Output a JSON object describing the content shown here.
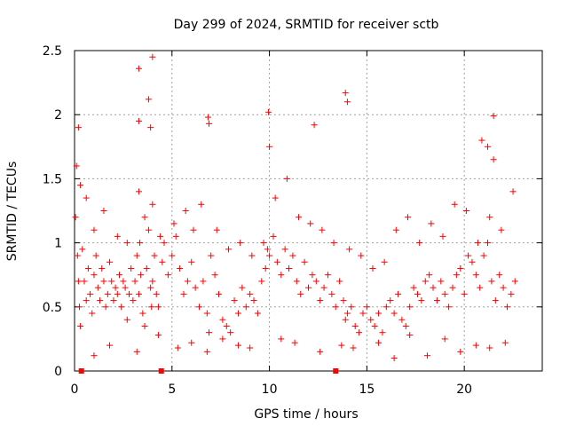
{
  "chart_data": {
    "type": "scatter",
    "title": "Day 299 of 2024, SRMTID for receiver sctb",
    "xlabel": "GPS time / hours",
    "ylabel": "SRMTID / TECUs",
    "xlim": [
      0,
      24
    ],
    "ylim": [
      0,
      2.5
    ],
    "xticks": [
      0,
      5,
      10,
      15,
      20
    ],
    "yticks": [
      0,
      0.5,
      1,
      1.5,
      2,
      2.5
    ],
    "xtick_labels": [
      "0",
      "5",
      "10",
      "15",
      "20"
    ],
    "ytick_labels": [
      "0",
      "0.5",
      "1",
      "1.5",
      "2",
      "2.5"
    ],
    "grid": true,
    "marker": "plus",
    "series": [
      {
        "name": "SRMTID",
        "color": "#ff0000",
        "x": [
          0.05,
          0.1,
          0.15,
          0.2,
          0.25,
          0.3,
          0.4,
          0.5,
          0.6,
          0.7,
          0.8,
          0.9,
          1.0,
          1.1,
          1.2,
          1.3,
          1.4,
          1.5,
          1.6,
          1.7,
          1.8,
          1.9,
          2.0,
          2.1,
          2.2,
          2.3,
          2.4,
          2.5,
          2.6,
          2.7,
          2.8,
          2.9,
          3.0,
          3.1,
          3.2,
          3.3,
          3.35,
          3.4,
          3.5,
          3.6,
          3.7,
          3.8,
          3.9,
          3.95,
          4.0,
          4.1,
          4.2,
          4.3,
          4.5,
          4.6,
          4.8,
          5.0,
          5.2,
          5.4,
          5.6,
          5.8,
          6.0,
          6.2,
          6.4,
          6.6,
          6.8,
          6.9,
          7.0,
          7.2,
          7.4,
          7.6,
          7.8,
          8.0,
          8.2,
          8.4,
          8.6,
          8.8,
          9.0,
          9.2,
          9.4,
          9.6,
          9.8,
          9.9,
          10.0,
          10.2,
          10.4,
          10.6,
          10.8,
          11.0,
          11.2,
          11.4,
          11.6,
          11.8,
          12.0,
          12.2,
          12.4,
          12.6,
          12.8,
          13.0,
          13.2,
          13.4,
          13.6,
          13.8,
          13.9,
          14.0,
          14.2,
          14.4,
          14.6,
          14.8,
          15.0,
          15.2,
          15.4,
          15.6,
          15.8,
          16.0,
          16.2,
          16.4,
          16.6,
          16.8,
          17.0,
          17.2,
          17.4,
          17.6,
          17.8,
          18.0,
          18.2,
          18.4,
          18.6,
          18.8,
          19.0,
          19.2,
          19.4,
          19.6,
          19.8,
          20.0,
          20.2,
          20.4,
          20.6,
          20.8,
          21.0,
          21.2,
          21.4,
          21.6,
          21.8,
          22.0,
          22.2,
          22.4,
          22.6,
          0.3,
          0.6,
          1.0,
          1.5,
          2.2,
          2.7,
          3.3,
          3.6,
          4.0,
          4.4,
          5.1,
          5.7,
          6.1,
          6.5,
          7.3,
          7.9,
          8.5,
          9.1,
          9.7,
          10.3,
          10.9,
          11.5,
          12.1,
          12.7,
          13.3,
          14.1,
          14.7,
          15.3,
          15.9,
          16.5,
          17.1,
          17.7,
          18.3,
          18.9,
          19.5,
          20.1,
          20.7,
          21.3,
          21.9,
          22.5,
          0.2,
          3.3,
          3.8,
          4.0,
          6.85,
          6.9,
          9.95,
          10.0,
          12.3,
          13.9,
          14.0,
          20.9,
          21.2,
          21.5,
          21.5,
          3.3,
          3.9,
          1.0,
          1.8,
          3.2,
          4.3,
          5.3,
          6.0,
          6.8,
          7.6,
          8.4,
          9.0,
          10.6,
          11.3,
          12.6,
          13.7,
          14.3,
          15.6,
          16.4,
          17.2,
          18.1,
          19.0,
          19.8,
          20.6,
          21.3,
          22.1
        ],
        "y": [
          1.2,
          1.6,
          0.9,
          0.7,
          0.5,
          0.35,
          0.95,
          0.7,
          0.55,
          0.8,
          0.6,
          0.45,
          0.75,
          0.9,
          0.65,
          0.55,
          0.8,
          0.7,
          0.5,
          0.6,
          0.85,
          0.7,
          0.55,
          0.65,
          0.6,
          0.75,
          0.5,
          0.7,
          0.65,
          0.4,
          0.6,
          0.8,
          0.55,
          0.7,
          0.9,
          0.6,
          1.0,
          0.75,
          0.45,
          0.35,
          0.8,
          1.1,
          0.65,
          0.5,
          0.7,
          0.9,
          0.6,
          0.5,
          0.85,
          1.0,
          0.75,
          0.9,
          1.05,
          0.8,
          0.6,
          0.7,
          0.85,
          0.65,
          0.5,
          0.7,
          0.45,
          0.3,
          0.9,
          0.75,
          0.6,
          0.4,
          0.35,
          0.3,
          0.55,
          0.45,
          0.65,
          0.5,
          0.6,
          0.55,
          0.45,
          0.7,
          0.8,
          0.95,
          0.9,
          1.05,
          0.85,
          0.75,
          0.95,
          0.8,
          0.9,
          0.7,
          0.6,
          0.85,
          0.65,
          0.75,
          0.7,
          0.55,
          0.65,
          0.75,
          0.6,
          0.5,
          0.7,
          0.55,
          0.4,
          0.45,
          0.5,
          0.35,
          0.3,
          0.45,
          0.5,
          0.4,
          0.35,
          0.45,
          0.3,
          0.5,
          0.55,
          0.45,
          0.6,
          0.4,
          0.35,
          0.5,
          0.65,
          0.6,
          0.55,
          0.7,
          0.75,
          0.65,
          0.55,
          0.7,
          0.6,
          0.5,
          0.65,
          0.75,
          0.8,
          0.6,
          0.9,
          0.85,
          0.75,
          0.65,
          0.9,
          1.0,
          0.7,
          0.55,
          0.75,
          0.65,
          0.5,
          0.6,
          0.7,
          1.45,
          1.35,
          1.1,
          1.25,
          1.05,
          1.0,
          1.4,
          1.2,
          1.3,
          1.05,
          1.15,
          1.25,
          1.1,
          1.3,
          1.1,
          0.95,
          1.0,
          0.9,
          1.0,
          1.35,
          1.5,
          1.2,
          1.15,
          1.1,
          1.0,
          0.95,
          0.9,
          0.8,
          0.85,
          1.1,
          1.2,
          1.0,
          1.15,
          1.05,
          1.3,
          1.25,
          1.0,
          1.2,
          1.1,
          1.4,
          1.9,
          2.36,
          2.12,
          2.45,
          1.98,
          1.93,
          2.02,
          1.75,
          1.92,
          2.17,
          2.1,
          1.8,
          1.75,
          1.99,
          1.65,
          1.95,
          1.9,
          0.12,
          0.2,
          0.15,
          0.28,
          0.18,
          0.22,
          0.15,
          0.25,
          0.2,
          0.18,
          0.25,
          0.22,
          0.15,
          0.2,
          0.18,
          0.22,
          0.1,
          0.28,
          0.12,
          0.25,
          0.15,
          0.2,
          0.18,
          0.22
        ],
        "baseline_markers_x": [
          0.35,
          4.45,
          13.4
        ],
        "baseline_markers_y": [
          0,
          0,
          0
        ]
      }
    ]
  }
}
